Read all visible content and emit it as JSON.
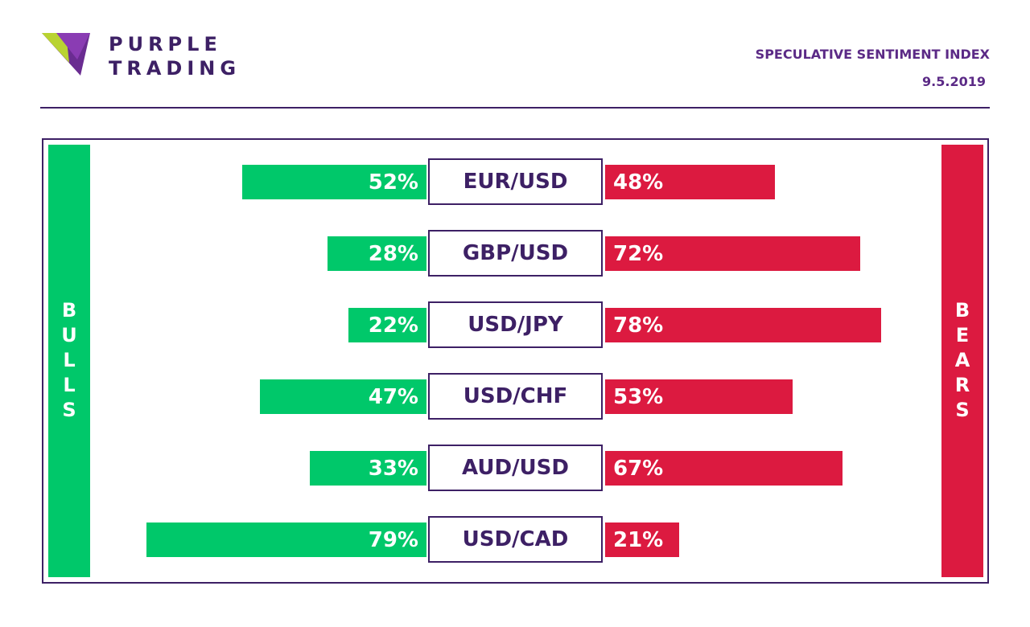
{
  "brand": {
    "line1": "PURPLE",
    "line2": "TRADING"
  },
  "header": {
    "title": "SPECULATIVE SENTIMENT INDEX",
    "date": "9.5.2019"
  },
  "sides": {
    "bulls": "BULLS",
    "bears": "BEARS"
  },
  "colors": {
    "bull": "#00c86a",
    "bear": "#dc1a40",
    "brand": "#3d2065"
  },
  "chart_data": {
    "type": "bar",
    "categories": [
      "EUR/USD",
      "GBP/USD",
      "USD/JPY",
      "USD/CHF",
      "AUD/USD",
      "USD/CAD"
    ],
    "series": [
      {
        "name": "BULLS",
        "values": [
          52,
          28,
          22,
          47,
          33,
          79
        ]
      },
      {
        "name": "BEARS",
        "values": [
          48,
          72,
          78,
          53,
          67,
          21
        ]
      }
    ],
    "value_labels": {
      "BULLS": [
        "52%",
        "28%",
        "22%",
        "47%",
        "33%",
        "79%"
      ],
      "BEARS": [
        "48%",
        "72%",
        "78%",
        "53%",
        "67%",
        "21%"
      ]
    }
  }
}
